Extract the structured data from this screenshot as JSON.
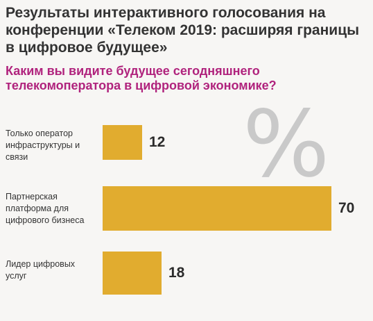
{
  "chart_data": {
    "type": "bar",
    "orientation": "horizontal",
    "title": "Результаты интерактивного голосования на конференции «Телеком 2019: расширяя границы в цифровое будущее»",
    "subtitle": "Каким вы видите будущее сегодняшнего телекомоператора в цифровой экономике?",
    "percent_sign": "%",
    "categories": [
      "Только оператор инфраструктуры и связи",
      "Партнерская платформа для цифрового бизнеса",
      "Лидер цифровых услуг"
    ],
    "values": [
      12,
      70,
      18
    ],
    "value_labels": [
      "12",
      "70",
      "18"
    ],
    "xlim": [
      0,
      70
    ],
    "grid": false,
    "legend": "none"
  },
  "colors": {
    "bar": "#e1ac2f",
    "title": "#333333",
    "subtitle": "#b0237d",
    "percent": "#c9c9c9",
    "background": "#f7f6f4"
  }
}
